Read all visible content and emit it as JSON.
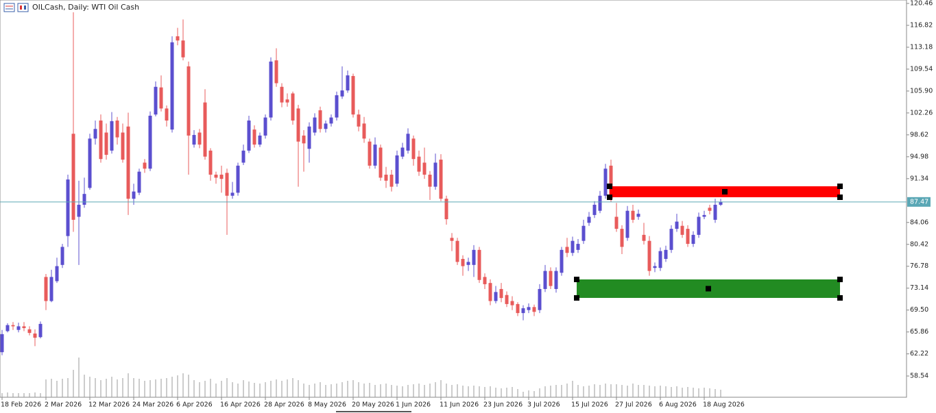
{
  "chart_data": {
    "type": "candlestick",
    "title": "OILCash, Daily:  WTI Oil Cash",
    "categories": [
      "18 Feb 2026",
      null,
      null,
      null,
      null,
      null,
      null,
      null,
      "2 Mar 2026",
      null,
      null,
      null,
      null,
      null,
      null,
      null,
      "12 Mar 2026",
      null,
      null,
      null,
      null,
      null,
      null,
      null,
      "24 Mar 2026",
      null,
      null,
      null,
      null,
      null,
      null,
      null,
      "6 Apr 2026",
      null,
      null,
      null,
      null,
      null,
      null,
      null,
      "16 Apr 2026",
      null,
      null,
      null,
      null,
      null,
      null,
      null,
      "28 Apr 2026",
      null,
      null,
      null,
      null,
      null,
      null,
      null,
      "8 May 2026",
      null,
      null,
      null,
      null,
      null,
      null,
      null,
      "20 May 2026",
      null,
      null,
      null,
      null,
      null,
      null,
      null,
      "1 Jun 2026",
      null,
      null,
      null,
      null,
      null,
      null,
      null,
      "11 Jun 2026",
      null,
      null,
      null,
      null,
      null,
      null,
      null,
      "23 Jun 2026",
      null,
      null,
      null,
      null,
      null,
      null,
      null,
      "3 Jul 2026",
      null,
      null,
      null,
      null,
      null,
      null,
      null,
      "15 Jul 2026",
      null,
      null,
      null,
      null,
      null,
      null,
      null,
      "27 Jul 2026",
      null,
      null,
      null,
      null,
      null,
      null,
      null,
      "6 Aug 2026",
      null,
      null,
      null,
      null,
      null,
      null,
      null,
      "18 Aug 2026",
      null,
      null,
      null
    ],
    "open": [
      62.5,
      66,
      67,
      66.2,
      66.8,
      66.3,
      65.6,
      65,
      75,
      71,
      74.3,
      77,
      81.8,
      98.8,
      85,
      87,
      89.8,
      98,
      101,
      99,
      96,
      101,
      99,
      100,
      88,
      89,
      94,
      93,
      102,
      106.5,
      103,
      99.5,
      115,
      114.3,
      110,
      97,
      99,
      104,
      96,
      92,
      92,
      92.3,
      88.5,
      89,
      94,
      96,
      99.5,
      97,
      98.5,
      101.5,
      111,
      106.6,
      104.5,
      105.5,
      103,
      98.5,
      96.3,
      99,
      102.7,
      99.6,
      100.5,
      101.5,
      105,
      106,
      108.4,
      102,
      100.5,
      97.5,
      93.5,
      96.5,
      92,
      92,
      90.5,
      95,
      96,
      98,
      95,
      94,
      92,
      90,
      94.5,
      88,
      81.5,
      81,
      78,
      77,
      77,
      79.5,
      75,
      74,
      71,
      73,
      72,
      71,
      70.5,
      69,
      69.5,
      70,
      69.5,
      73,
      76,
      73,
      75.7,
      80,
      79,
      79.5,
      81,
      84,
      85.3,
      86,
      88.5,
      93.5,
      85,
      83,
      81.5,
      86,
      85,
      82,
      81,
      76.5,
      76.5,
      78,
      79.5,
      83,
      83.5,
      83,
      80.5,
      82,
      85,
      86.5,
      84.5,
      87
    ],
    "high": [
      66.2,
      67.3,
      67.5,
      67.4,
      67.5,
      66.8,
      66.3,
      67.6,
      75.5,
      76.2,
      78.2,
      80.5,
      92,
      119,
      91,
      91.5,
      98.8,
      101,
      102,
      100.5,
      102.4,
      101.6,
      100.5,
      102.3,
      90.5,
      93,
      94.6,
      102.5,
      107.5,
      108.5,
      103.5,
      115,
      116.4,
      117.8,
      110.8,
      99.4,
      99.6,
      106.2,
      96.4,
      92.5,
      93.5,
      93,
      90.8,
      94,
      97,
      101.8,
      100.2,
      99,
      102,
      111.5,
      113,
      107.2,
      105.5,
      105.8,
      103.6,
      99.4,
      100.7,
      102.2,
      103.3,
      101,
      102,
      105.8,
      110,
      109.3,
      108.8,
      102.8,
      101.6,
      98,
      98.2,
      97,
      93.3,
      92.8,
      96,
      97.3,
      99.7,
      98.5,
      96,
      96.5,
      92.6,
      95.5,
      95.4,
      88.5,
      82.3,
      81.5,
      78.6,
      78.2,
      80.3,
      80,
      75.6,
      74.6,
      73.5,
      74,
      72.6,
      71.8,
      70.8,
      70.3,
      70.6,
      70.4,
      73.8,
      77,
      76.6,
      76.6,
      80,
      81.5,
      81.7,
      81.3,
      84.5,
      85.8,
      87.6,
      89.3,
      93.8,
      94.5,
      87.3,
      83.6,
      86.8,
      87,
      86.2,
      84,
      81.8,
      77.4,
      79.9,
      80.2,
      83.6,
      85.5,
      84.3,
      83.6,
      82.6,
      85.7,
      86,
      87,
      88,
      88
    ],
    "low": [
      62,
      65.8,
      66.2,
      65.8,
      66,
      65.3,
      63.5,
      64.8,
      69.5,
      70.8,
      74,
      76.5,
      80,
      82.5,
      77,
      86.5,
      89.5,
      97,
      94,
      94.5,
      95.5,
      97,
      94,
      85.3,
      87,
      88.6,
      92.3,
      92.6,
      101.7,
      102.5,
      100,
      99,
      113.5,
      111,
      92,
      96.5,
      96.4,
      94.5,
      91,
      90.5,
      89,
      82,
      88,
      88.5,
      93.6,
      95.6,
      96.5,
      96.6,
      98,
      101,
      106.6,
      103.2,
      103.3,
      100.3,
      90,
      92.5,
      94,
      98.5,
      99,
      99,
      100,
      101,
      104.6,
      105.6,
      101.5,
      99.2,
      97.3,
      93,
      93,
      91,
      89.8,
      89.2,
      90,
      94.6,
      95.5,
      93.5,
      91.8,
      91.3,
      87.8,
      89.5,
      87.6,
      83.7,
      79.3,
      77,
      75.2,
      76,
      75,
      74,
      73,
      70.3,
      70.6,
      70.8,
      70,
      69.5,
      68.5,
      67.8,
      69,
      68.5,
      69,
      72.5,
      73,
      72.4,
      75.2,
      78.3,
      78.5,
      79,
      80.5,
      83.5,
      84.8,
      85.6,
      88,
      87.5,
      82.5,
      78.8,
      81,
      84,
      84.5,
      80.4,
      75.2,
      75.8,
      76,
      77.5,
      79,
      82.5,
      81.5,
      80,
      80,
      81.5,
      84.6,
      85.4,
      84,
      86.8
    ],
    "close": [
      65.5,
      67,
      66.8,
      66.8,
      66.5,
      65.7,
      64.9,
      67.2,
      71,
      75,
      76.8,
      80,
      91.2,
      84.5,
      87,
      88.8,
      98,
      99.6,
      94.6,
      95.3,
      100.9,
      98.2,
      94.5,
      88,
      89.2,
      92.5,
      93,
      101.8,
      106.6,
      103,
      101,
      114,
      114.3,
      111.5,
      98.5,
      98.6,
      97,
      95,
      92,
      91.5,
      91.3,
      88.5,
      89,
      93.5,
      96,
      101,
      97,
      98.5,
      101.5,
      110.8,
      107.2,
      104,
      104,
      101,
      97.5,
      97.2,
      100,
      101.5,
      99.6,
      100.5,
      101.5,
      105.2,
      106,
      108.5,
      102,
      100,
      98,
      93.5,
      97,
      91.5,
      91,
      90,
      95.2,
      96.5,
      98.8,
      94.6,
      92.5,
      92,
      90,
      94,
      88,
      84.6,
      81,
      77.5,
      76.8,
      77.5,
      79.5,
      74.5,
      73.8,
      71,
      72.5,
      71.5,
      70.5,
      70.3,
      69,
      69.8,
      70,
      69.2,
      73,
      76,
      73.5,
      76,
      79.5,
      79,
      81,
      80.5,
      83.5,
      85,
      87,
      88.5,
      93,
      88,
      83,
      80,
      86,
      84.5,
      85.5,
      81,
      76,
      76.8,
      79.3,
      79.5,
      83,
      84.2,
      82,
      80.5,
      82,
      85,
      85.3,
      86,
      87,
      87.47
    ],
    "up_color": "#5b4fcf",
    "down_color": "#e85b5b",
    "volume": [
      6,
      7,
      6,
      6,
      6,
      6,
      7,
      6,
      26,
      27,
      24,
      27,
      28,
      40,
      58,
      33,
      30,
      28,
      25,
      27,
      30,
      26,
      28,
      35,
      28,
      27,
      24,
      25,
      26,
      27,
      28,
      30,
      32,
      35,
      33,
      25,
      22,
      24,
      27,
      20,
      24,
      28,
      22,
      20,
      25,
      23,
      21,
      20,
      22,
      24,
      26,
      24,
      26,
      28,
      25,
      20,
      18,
      20,
      22,
      18,
      19,
      20,
      22,
      24,
      25,
      22,
      20,
      21,
      18,
      19,
      20,
      18,
      17,
      16,
      18,
      19,
      20,
      18,
      20,
      22,
      25,
      20,
      18,
      19,
      17,
      16,
      17,
      16,
      15,
      16,
      14,
      13,
      14,
      15,
      12,
      8,
      10,
      9,
      13,
      16,
      17,
      18,
      18,
      20,
      24,
      18,
      16,
      17,
      19,
      18,
      20,
      19,
      19,
      18,
      17,
      20,
      18,
      18,
      17,
      16,
      17,
      16,
      15,
      16,
      14,
      15,
      14,
      13,
      14,
      13,
      12,
      11
    ],
    "volume_lim": [
      0,
      100
    ],
    "volume_color": "#9a9a9a",
    "ylim": [
      55.01,
      121.03
    ],
    "yticks": [
      120.46,
      116.82,
      113.18,
      109.54,
      {
        "value": 105.9,
        "label": "105.90"
      },
      102.26,
      98.62,
      94.98,
      91.34,
      84.06,
      80.42,
      76.78,
      73.14,
      {
        "value": 69.5,
        "label": "69.50"
      },
      65.86,
      62.22,
      58.54
    ],
    "grid": false,
    "last_price": 87.47,
    "last_price_color": "#5aa7b5",
    "zones": [
      {
        "color": "#ff0000",
        "top": 90.07,
        "bottom": 88.25,
        "start": 110.75,
        "end": 152.75
      },
      {
        "color": "#228b22",
        "top": 74.59,
        "bottom": 71.52,
        "start": 104.75,
        "end": 152.75
      }
    ]
  }
}
